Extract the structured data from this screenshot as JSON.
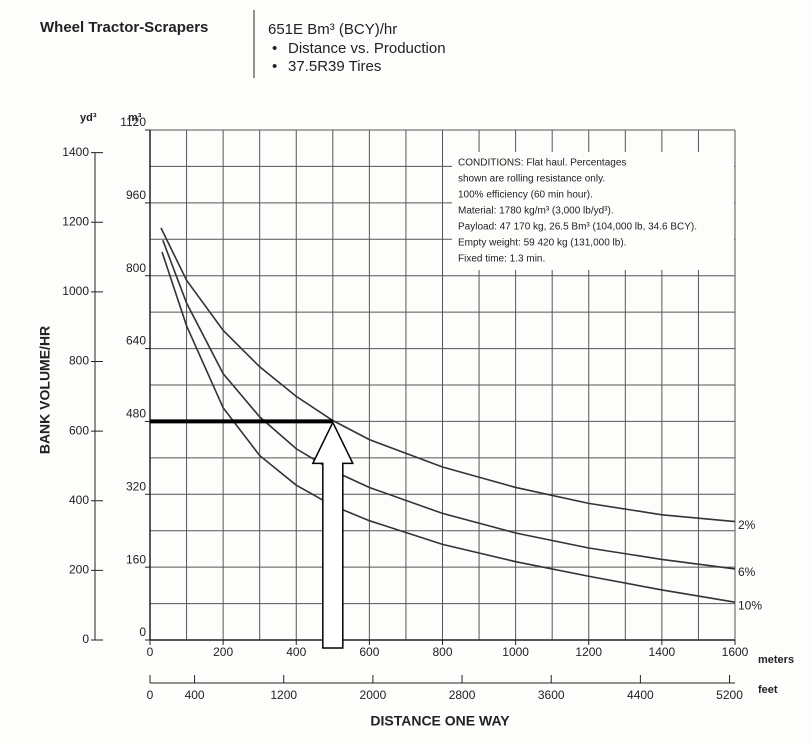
{
  "header": {
    "section": "Wheel Tractor-Scrapers",
    "title": "651E Bm³ (BCY)/hr",
    "bullets": [
      "Distance vs. Production",
      "37.5R39 Tires"
    ]
  },
  "chart_data": {
    "type": "line",
    "ylabel": "BANK VOLUME/HR",
    "xlabel": "DISTANCE ONE WAY",
    "y_unit": "m³",
    "y2_unit": "yd³",
    "x_unit": "meters",
    "x2_unit": "feet",
    "xlim": [
      0,
      1600
    ],
    "xticks": [
      0,
      200,
      400,
      600,
      800,
      1000,
      1200,
      1400,
      1600
    ],
    "ylim": [
      0,
      1120
    ],
    "yticks": [
      0,
      160,
      320,
      480,
      640,
      800,
      960,
      1120
    ],
    "y2lim": [
      0,
      1465
    ],
    "y2ticks": [
      0,
      200,
      400,
      600,
      800,
      1000,
      1200,
      1400
    ],
    "x2lim": [
      0,
      5249
    ],
    "x2ticks": [
      0,
      400,
      1200,
      2000,
      2800,
      3600,
      4400,
      5200
    ],
    "grid": true,
    "xgrid_step": 100,
    "ygrid_step": 80,
    "series": [
      {
        "name": "2%",
        "color": "#333333",
        "x": [
          30,
          100,
          200,
          300,
          400,
          500,
          600,
          800,
          1000,
          1200,
          1400,
          1600
        ],
        "values": [
          905,
          790,
          680,
          600,
          535,
          482,
          440,
          380,
          335,
          300,
          275,
          260
        ]
      },
      {
        "name": "6%",
        "color": "#333333",
        "x": [
          35,
          100,
          200,
          300,
          400,
          500,
          600,
          800,
          1000,
          1200,
          1400,
          1600
        ],
        "values": [
          878,
          740,
          585,
          490,
          420,
          372,
          335,
          278,
          235,
          202,
          177,
          156
        ]
      },
      {
        "name": "10%",
        "color": "#333333",
        "x": [
          33,
          100,
          200,
          300,
          400,
          500,
          600,
          800,
          1000,
          1200,
          1400,
          1600
        ],
        "values": [
          852,
          690,
          510,
          405,
          340,
          295,
          262,
          210,
          172,
          140,
          110,
          83
        ]
      }
    ],
    "reference": {
      "x": 500,
      "y": 480
    },
    "conditions": [
      "CONDITIONS: Flat haul. Percentages",
      "shown are rolling resistance only.",
      "100% efficiency (60 min hour).",
      "Material: 1780 kg/m³ (3,000 lb/yd³).",
      "Payload: 47 170 kg, 26.5 Bm³ (104,000 lb, 34.6 BCY).",
      "Empty weight: 59 420 kg (131,000 lb).",
      "Fixed time: 1.3 min."
    ]
  }
}
